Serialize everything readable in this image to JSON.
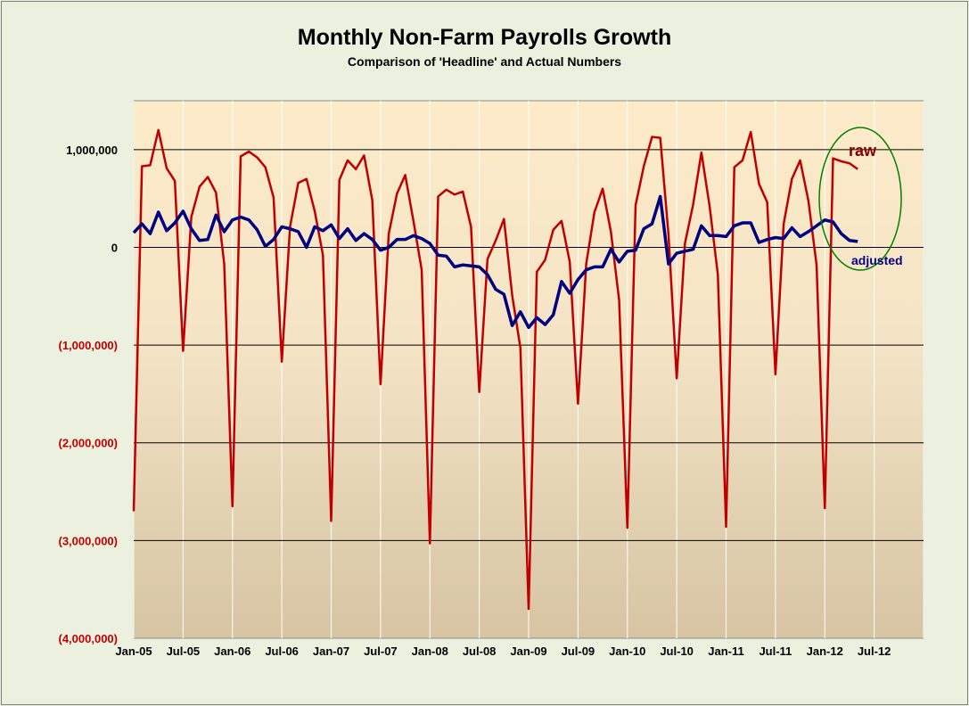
{
  "title": "Monthly Non-Farm Payrolls Growth",
  "subtitle": "Comparison of 'Headline' and Actual Numbers",
  "colors": {
    "raw": "#c00000",
    "adjusted": "#000080",
    "negative_ticks": "#c00000",
    "positive_ticks": "#000000",
    "annotation_ellipse": "#008000",
    "raw_label": "#800000"
  },
  "chart_data": {
    "type": "line",
    "x_start": "Jan-05",
    "x_ticks": [
      "Jan-05",
      "Jul-05",
      "Jan-06",
      "Jul-06",
      "Jan-07",
      "Jul-07",
      "Jan-08",
      "Jul-08",
      "Jan-09",
      "Jul-09",
      "Jan-10",
      "Jul-10",
      "Jan-11",
      "Jul-11",
      "Jan-12",
      "Jul-12"
    ],
    "y_ticks": [
      "1,000,000",
      "0",
      "(1,000,000)",
      "(2,000,000)",
      "(3,000,000)",
      "(4,000,000)"
    ],
    "y_tick_values": [
      1000000,
      0,
      -1000000,
      -2000000,
      -3000000,
      -4000000
    ],
    "ylim": [
      -4000000,
      1500000
    ],
    "grid": "horizontal",
    "series": [
      {
        "name": "raw",
        "values": [
          -2700000,
          830000,
          840000,
          1200000,
          810000,
          680000,
          -1060000,
          310000,
          620000,
          720000,
          560000,
          -170000,
          -2650000,
          930000,
          980000,
          920000,
          820000,
          510000,
          -1170000,
          210000,
          660000,
          700000,
          370000,
          -80000,
          -2800000,
          690000,
          890000,
          800000,
          940000,
          480000,
          -1400000,
          140000,
          550000,
          740000,
          270000,
          -230000,
          -3030000,
          520000,
          590000,
          540000,
          570000,
          210000,
          -1480000,
          -120000,
          70000,
          290000,
          -490000,
          -1030000,
          -3700000,
          -250000,
          -130000,
          180000,
          270000,
          -150000,
          -1600000,
          -170000,
          360000,
          600000,
          160000,
          -540000,
          -2870000,
          430000,
          830000,
          1130000,
          1120000,
          130000,
          -1340000,
          40000,
          440000,
          970000,
          420000,
          -280000,
          -2860000,
          820000,
          890000,
          1180000,
          650000,
          460000,
          -1300000,
          240000,
          700000,
          890000,
          480000,
          -180000,
          -2670000,
          910000,
          880000,
          860000,
          800000
        ]
      },
      {
        "name": "adjusted",
        "values": [
          150000,
          240000,
          140000,
          360000,
          170000,
          250000,
          370000,
          190000,
          70000,
          80000,
          330000,
          160000,
          280000,
          310000,
          280000,
          180000,
          10000,
          80000,
          210000,
          190000,
          160000,
          0,
          210000,
          170000,
          230000,
          90000,
          190000,
          70000,
          140000,
          80000,
          -30000,
          0,
          80000,
          80000,
          120000,
          90000,
          40000,
          -80000,
          -90000,
          -200000,
          -180000,
          -190000,
          -200000,
          -280000,
          -430000,
          -480000,
          -800000,
          -660000,
          -820000,
          -720000,
          -790000,
          -690000,
          -350000,
          -470000,
          -330000,
          -230000,
          -200000,
          -200000,
          -20000,
          -150000,
          -40000,
          -30000,
          190000,
          240000,
          520000,
          -170000,
          -60000,
          -40000,
          -20000,
          220000,
          120000,
          120000,
          110000,
          220000,
          250000,
          250000,
          50000,
          80000,
          100000,
          90000,
          200000,
          110000,
          160000,
          220000,
          280000,
          260000,
          140000,
          70000,
          60000
        ]
      }
    ],
    "annotations": [
      "raw",
      "adjusted"
    ]
  }
}
